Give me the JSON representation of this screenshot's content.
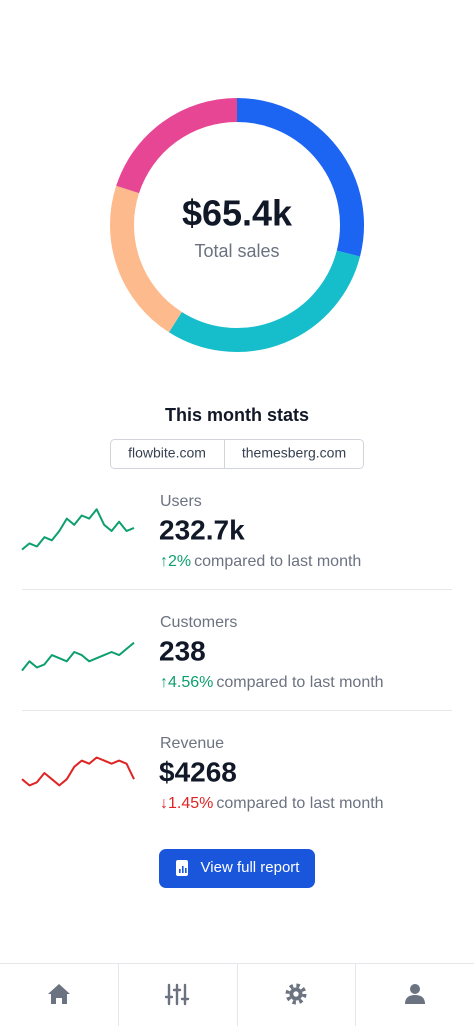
{
  "donut": {
    "center_value": "$65.4k",
    "center_label": "Total sales",
    "segments": [
      {
        "color": "#1c64f2",
        "value": 29
      },
      {
        "color": "#16bdca",
        "value": 30
      },
      {
        "color": "#fdba8c",
        "value": 21
      },
      {
        "color": "#e74694",
        "value": 20
      }
    ]
  },
  "stats": {
    "title": "This month stats",
    "tabs": [
      "flowbite.com",
      "themesberg.com"
    ],
    "items": [
      {
        "label": "Users",
        "value": "232.7k",
        "change": "↑2%",
        "change_text": "compared to last month",
        "color": "#0e9f6e",
        "trend": [
          2,
          3,
          2.5,
          4,
          3.5,
          5,
          7,
          6,
          7.5,
          7,
          8.5,
          6,
          5,
          6.5,
          5,
          5.5
        ]
      },
      {
        "label": "Customers",
        "value": "238",
        "change": "↑4.56%",
        "change_text": "compared to last month",
        "color": "#0e9f6e",
        "trend": [
          2,
          3.5,
          2.5,
          3,
          4.5,
          4,
          3.5,
          5,
          4.5,
          3.5,
          4,
          4.5,
          5,
          4.5,
          5.5,
          6.5
        ]
      },
      {
        "label": "Revenue",
        "value": "$4268",
        "change": "↓1.45%",
        "change_text": "compared to last month",
        "color": "#e02424",
        "trend": [
          4,
          3,
          3.5,
          5,
          4,
          3,
          4,
          6,
          7,
          6.5,
          7.5,
          7,
          6.5,
          7,
          6.5,
          4
        ]
      }
    ]
  },
  "button": {
    "label": "View full report"
  }
}
